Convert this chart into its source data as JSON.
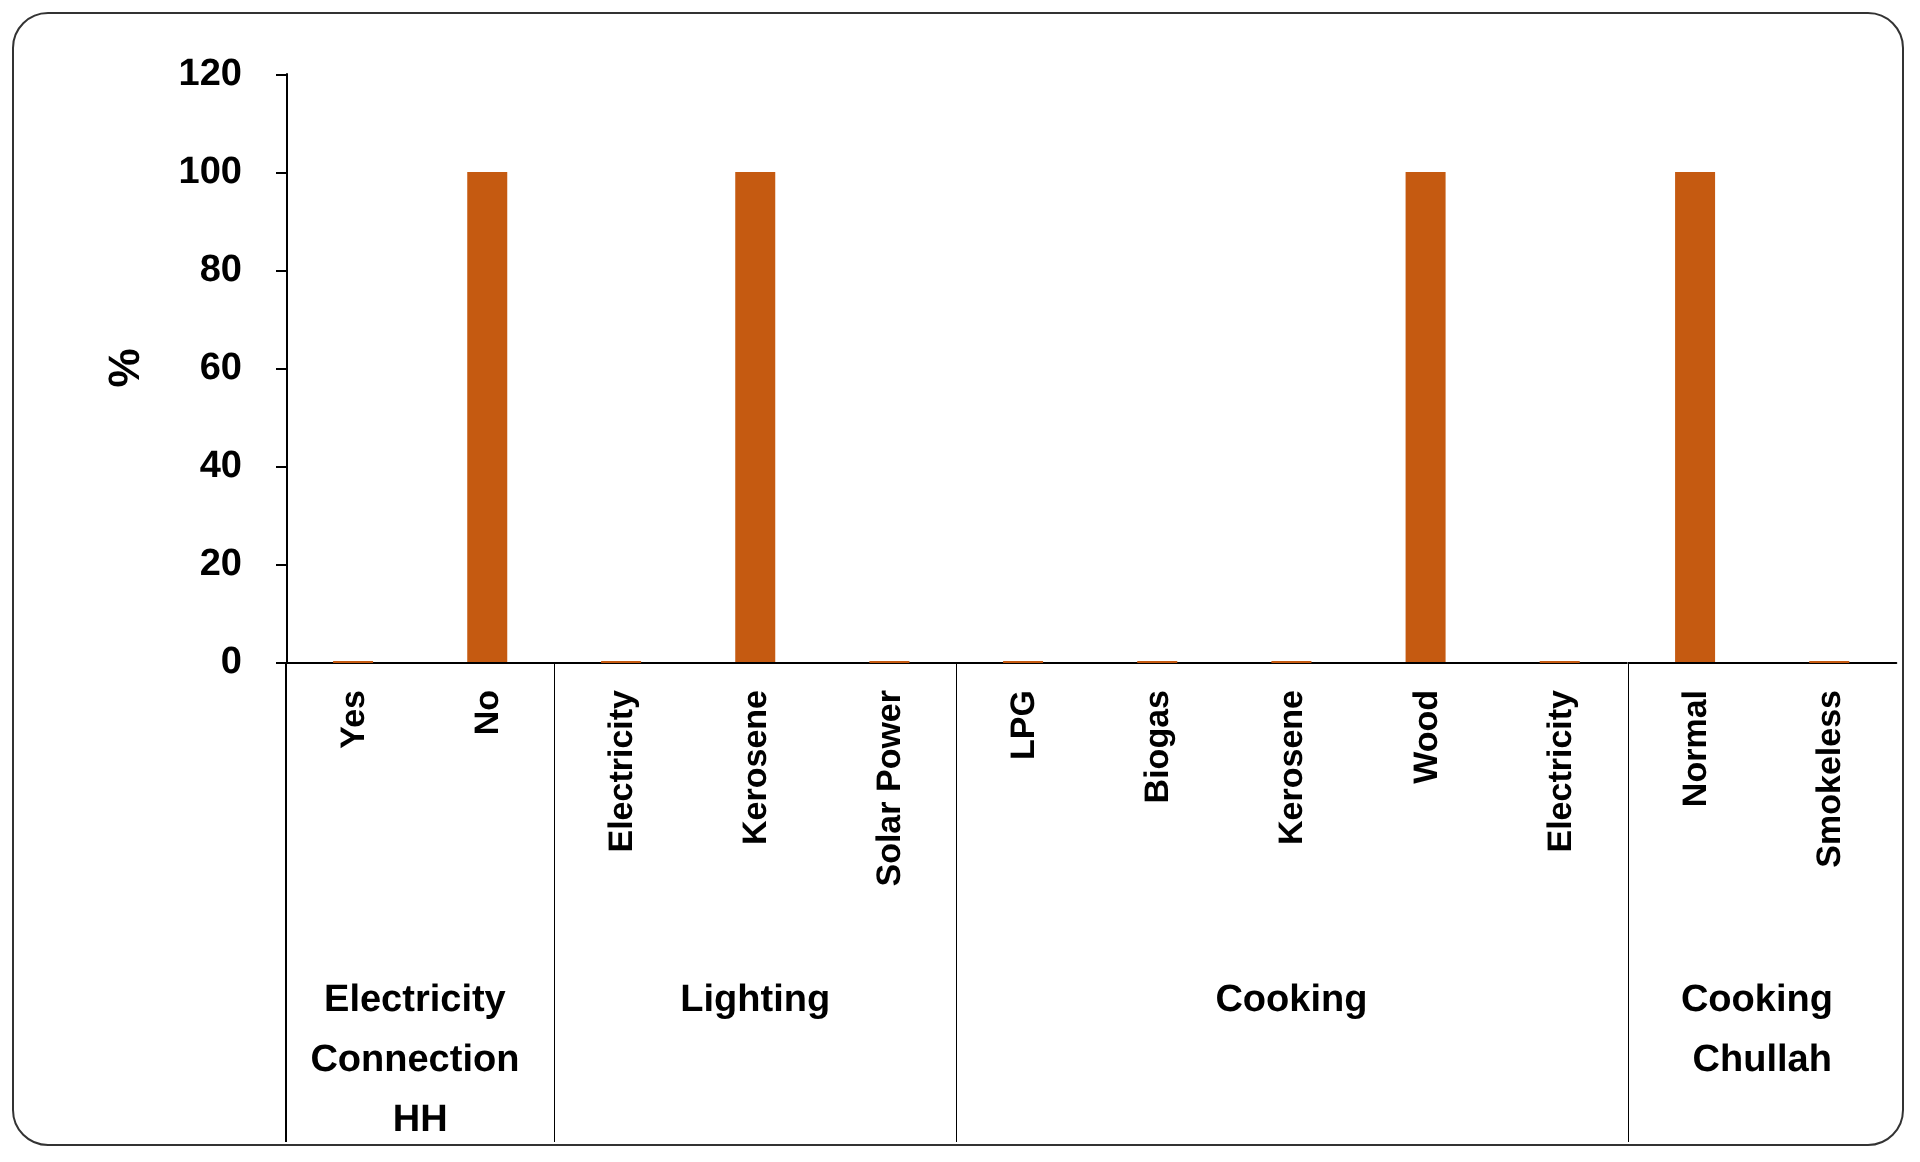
{
  "chart_data": [
    {
      "type": "bar",
      "ylabel": "%",
      "xlabel": "Electricity Connection HH",
      "categories": [
        "Yes",
        "No"
      ],
      "values": [
        0,
        100
      ],
      "color": "#c55a11",
      "ylim": [
        0,
        120
      ],
      "yticks": [
        0,
        20,
        40,
        60,
        80,
        100,
        120
      ],
      "grid": false
    },
    {
      "type": "bar",
      "xlabel": "Lighting",
      "categories": [
        "Electricity",
        "Kerosene",
        "Solar Power"
      ],
      "values": [
        0,
        100,
        0
      ],
      "color": "#c55a11",
      "ylim": [
        0,
        120
      ],
      "yticks": [
        0,
        20,
        40,
        60,
        80,
        100,
        120
      ],
      "grid": false,
      "tick_labels": "x"
    },
    {
      "type": "bar",
      "xlabel": "Cooking",
      "categories": [
        "LPG",
        "Biogas",
        "Kerosene",
        "Wood",
        "Electricity"
      ],
      "values": [
        0,
        0,
        0,
        100,
        0
      ],
      "color": "#c55a11",
      "ylim": [
        0,
        120
      ],
      "yticks": [
        0,
        20,
        40,
        60,
        80,
        100,
        120
      ],
      "grid": false,
      "tick_labels": "x"
    },
    {
      "type": "bar",
      "xlabel": "Cooking Chullah",
      "categories": [
        "Normal",
        "Smokeless"
      ],
      "values": [
        100,
        0
      ],
      "color": "#c55a11",
      "ylim": [
        0,
        120
      ],
      "yticks": [
        0,
        20,
        40,
        60,
        80,
        100,
        120
      ],
      "grid": false,
      "tick_labels": "x"
    }
  ]
}
